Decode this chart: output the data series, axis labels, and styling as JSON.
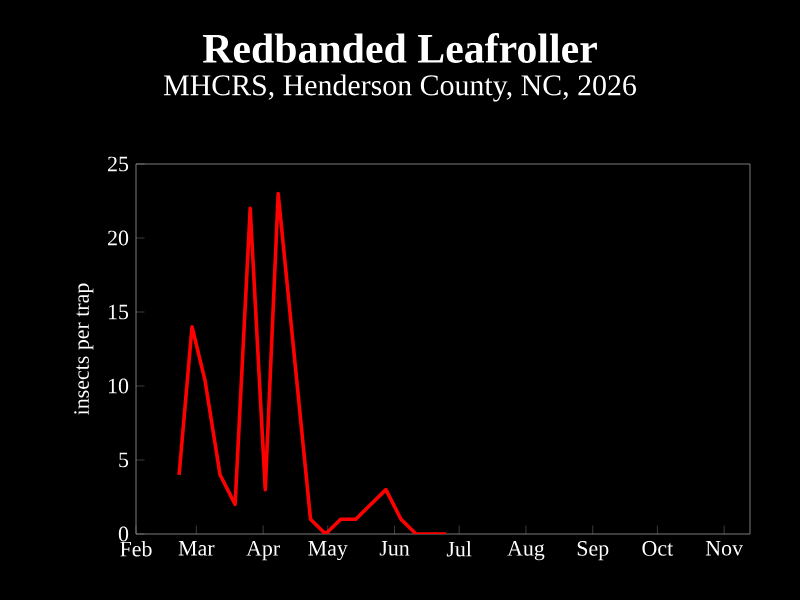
{
  "chart_data": {
    "type": "line",
    "title": "Redbanded Leafroller",
    "subtitle": "MHCRS, Henderson County, NC, 2026",
    "ylabel": "insects per trap",
    "x": [
      "2026-02-21",
      "2026-02-27",
      "2026-03-05",
      "2026-03-12",
      "2026-03-19",
      "2026-03-26",
      "2026-04-02",
      "2026-04-08",
      "2026-04-23",
      "2026-04-30",
      "2026-05-07",
      "2026-05-14",
      "2026-05-28",
      "2026-06-04",
      "2026-06-11",
      "2026-06-25"
    ],
    "series": [
      {
        "color": "#ff0000",
        "values": [
          4,
          14,
          10.4,
          4,
          2,
          22,
          3,
          23,
          1,
          0,
          1,
          1,
          3,
          1,
          0,
          0
        ]
      }
    ],
    "xlim": [
      "2026-02-01",
      "2026-11-13"
    ],
    "xticks": [
      {
        "value": "2026-02-01",
        "label": "Feb"
      },
      {
        "value": "2026-03-01",
        "label": "Mar"
      },
      {
        "value": "2026-04-01",
        "label": "Apr"
      },
      {
        "value": "2026-05-01",
        "label": "May"
      },
      {
        "value": "2026-06-01",
        "label": "Jun"
      },
      {
        "value": "2026-07-01",
        "label": "Jul"
      },
      {
        "value": "2026-08-01",
        "label": "Aug"
      },
      {
        "value": "2026-09-01",
        "label": "Sep"
      },
      {
        "value": "2026-10-01",
        "label": "Oct"
      },
      {
        "value": "2026-11-01",
        "label": "Nov"
      }
    ],
    "ylim": [
      0,
      25
    ],
    "yticks": [
      0,
      5,
      10,
      15,
      20,
      25
    ],
    "marker": "none",
    "line_style": "solid"
  }
}
